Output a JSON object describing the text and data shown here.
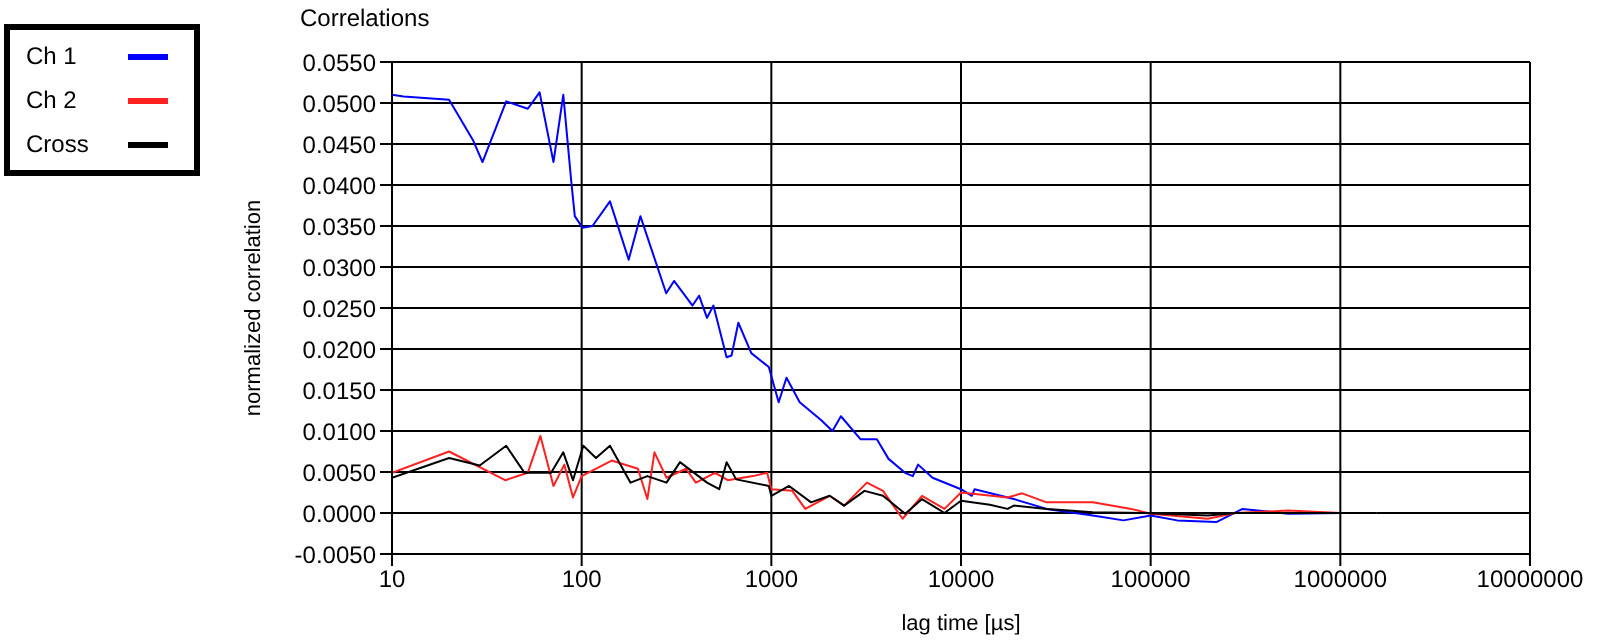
{
  "chart_data": {
    "type": "line",
    "title": "Correlations",
    "xlabel": "lag time [µs]",
    "ylabel": "normalized correlation",
    "log": "x",
    "grid": true,
    "legend": "top left",
    "marker": "none",
    "line_style": "solid",
    "xlim": [
      10,
      10000000
    ],
    "xticks": [
      10,
      100,
      1000,
      10000,
      100000,
      1000000,
      10000000
    ],
    "ylim": [
      -0.005,
      0.055
    ],
    "yticks": [
      {
        "value": 0.055,
        "label": "0.0550"
      },
      {
        "value": 0.05,
        "label": "0.0500"
      },
      {
        "value": 0.045,
        "label": "0.0450"
      },
      {
        "value": 0.04,
        "label": "0.0400"
      },
      {
        "value": 0.035,
        "label": "0.0350"
      },
      {
        "value": 0.03,
        "label": "0.0300"
      },
      {
        "value": 0.025,
        "label": "0.0250"
      },
      {
        "value": 0.02,
        "label": "0.0200"
      },
      {
        "value": 0.015,
        "label": "0.0150"
      },
      {
        "value": 0.01,
        "label": "0.0100"
      },
      {
        "value": 0.005,
        "label": "0.0050"
      },
      {
        "value": 0,
        "label": "0.0000"
      },
      {
        "value": -0.005,
        "label": "-0.0050"
      }
    ],
    "series": [
      {
        "name": "Ch 1",
        "color": "#0000ff",
        "x": [
          10,
          11.5,
          20,
          26.7,
          30,
          40,
          52,
          60,
          71,
          80,
          88,
          92,
          101,
          114,
          141,
          177,
          204,
          279,
          307,
          384,
          416,
          458,
          495,
          581,
          617,
          670,
          784,
          970,
          1093,
          1202,
          1411,
          1834,
          2100,
          2327,
          2950,
          3600,
          4150,
          5070,
          5570,
          5940,
          7080,
          10000,
          11400,
          11800,
          19000,
          28300,
          49500,
          71900,
          100000,
          138000,
          222000,
          305000,
          531000,
          1000000,
          1550000
        ],
        "values": [
          0.051,
          0.0508,
          0.0504,
          0.0455,
          0.0428,
          0.0502,
          0.0493,
          0.0513,
          0.0428,
          0.051,
          0.0406,
          0.0362,
          0.0348,
          0.035,
          0.038,
          0.0309,
          0.0362,
          0.0268,
          0.0283,
          0.0253,
          0.0265,
          0.0238,
          0.0253,
          0.019,
          0.0192,
          0.0232,
          0.0195,
          0.0178,
          0.0135,
          0.0165,
          0.0135,
          0.0113,
          0.01,
          0.0118,
          0.009,
          0.009,
          0.0066,
          0.0049,
          0.0045,
          0.0059,
          0.0043,
          0.0029,
          0.0021,
          0.0029,
          0.0017,
          0.0005,
          -0.0003,
          -0.0009,
          -0.0003,
          -0.0009,
          -0.0011,
          0.0005,
          -0.0001,
          0,
          0
        ]
      },
      {
        "name": "Ch 2",
        "color": "#ff2020",
        "x": [
          10,
          20,
          39.5,
          52,
          60.6,
          71,
          81,
          90,
          100,
          144,
          198,
          222,
          242,
          280,
          355,
          400,
          505,
          590,
          800,
          950,
          1000,
          1290,
          1510,
          2030,
          2420,
          3190,
          3880,
          4920,
          6230,
          8180,
          10000,
          17600,
          21000,
          28300,
          49500,
          79000,
          100000,
          200000,
          280000,
          531000,
          1000000,
          1550000
        ],
        "values": [
          0.0049,
          0.0075,
          0.004,
          0.0049,
          0.0094,
          0.0033,
          0.0059,
          0.0019,
          0.0045,
          0.0064,
          0.0054,
          0.0017,
          0.0074,
          0.0043,
          0.0054,
          0.0037,
          0.0049,
          0.004,
          0.0045,
          0.0049,
          0.0029,
          0.0027,
          0.0005,
          0.0021,
          0.0009,
          0.0037,
          0.0027,
          -0.0007,
          0.0021,
          0.0005,
          0.0025,
          0.0019,
          0.0024,
          0.0013,
          0.0013,
          0.0005,
          -0.0001,
          -0.0007,
          0,
          0.0003,
          0,
          0
        ]
      },
      {
        "name": "Cross",
        "color": "#000000",
        "x": [
          10,
          20,
          29,
          40,
          50,
          69,
          80,
          90,
          102,
          119,
          141,
          181,
          222,
          280,
          330,
          458,
          531,
          581,
          653,
          970,
          1000,
          1240,
          1620,
          2030,
          2420,
          3100,
          3880,
          5080,
          6230,
          8180,
          10000,
          14200,
          17600,
          19000,
          28300,
          49500,
          92000,
          200000,
          280000,
          1000000,
          1550000
        ],
        "values": [
          0.0043,
          0.0067,
          0.0058,
          0.0082,
          0.0049,
          0.0049,
          0.0074,
          0.004,
          0.0082,
          0.0067,
          0.0082,
          0.0037,
          0.0045,
          0.0037,
          0.0062,
          0.0037,
          0.0029,
          0.0062,
          0.0041,
          0.0033,
          0.0021,
          0.0033,
          0.0013,
          0.0021,
          0.0009,
          0.0027,
          0.0021,
          -0.0001,
          0.0017,
          0,
          0.0015,
          0.001,
          0.0005,
          0.0009,
          0.0005,
          0.0001,
          0,
          -0.0003,
          0,
          0,
          0
        ]
      }
    ]
  }
}
